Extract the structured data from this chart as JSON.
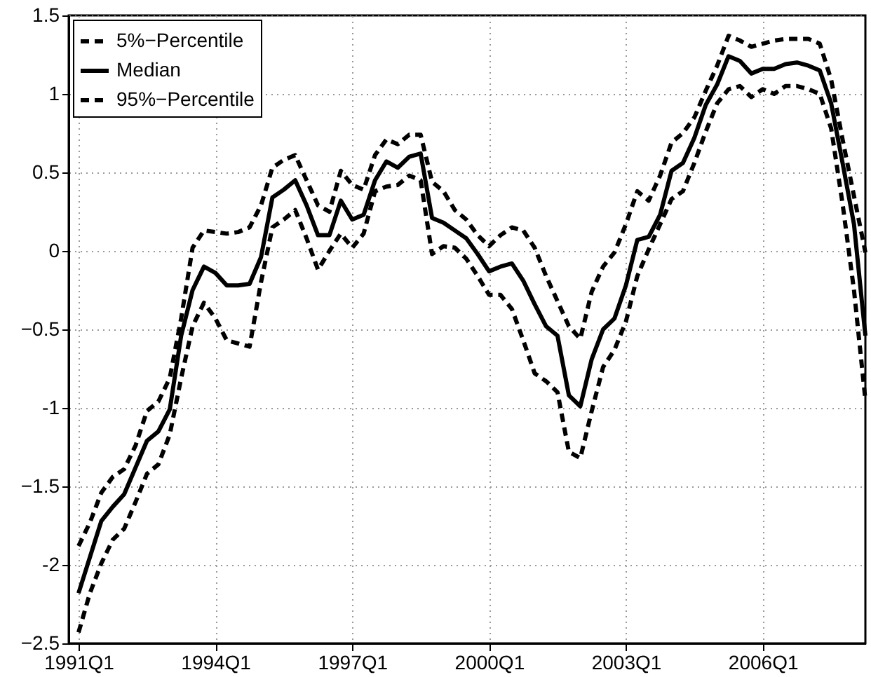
{
  "chart_data": {
    "type": "line",
    "ylim": [
      -2.5,
      1.5
    ],
    "categories": [
      "1991Q1",
      null,
      null,
      null,
      null,
      null,
      null,
      null,
      null,
      null,
      null,
      null,
      "1994Q1",
      null,
      null,
      null,
      null,
      null,
      null,
      null,
      null,
      null,
      null,
      null,
      "1997Q1",
      null,
      null,
      null,
      null,
      null,
      null,
      null,
      null,
      null,
      null,
      null,
      "2000Q1",
      null,
      null,
      null,
      null,
      null,
      null,
      null,
      null,
      null,
      null,
      null,
      "2003Q1",
      null,
      null,
      null,
      null,
      null,
      null,
      null,
      null,
      null,
      null,
      null,
      "2006Q1",
      null,
      null,
      null,
      null,
      null,
      null,
      null,
      null,
      null
    ],
    "yticks": [
      -2.5,
      {
        "value": -2,
        "label": "-2"
      },
      -1.5,
      {
        "value": -1,
        "label": "-1"
      },
      -0.5,
      {
        "value": 0,
        "label": "0"
      },
      0.5,
      {
        "value": 1,
        "label": "1"
      },
      1.5
    ],
    "series": [
      {
        "name": "5%−Percentile",
        "color": "#000000",
        "line_style": "dashed",
        "values": [
          -2.43,
          -2.18,
          -1.99,
          -1.84,
          -1.77,
          -1.6,
          -1.42,
          -1.36,
          -1.17,
          -0.81,
          -0.48,
          -0.33,
          -0.43,
          -0.57,
          -0.59,
          -0.61,
          -0.2,
          0.15,
          0.2,
          0.26,
          0.08,
          -0.12,
          0.0,
          0.11,
          0.02,
          0.11,
          0.38,
          0.41,
          0.42,
          0.48,
          0.45,
          -0.02,
          0.03,
          0.02,
          -0.05,
          -0.16,
          -0.28,
          -0.28,
          -0.37,
          -0.57,
          -0.78,
          -0.83,
          -0.9,
          -1.28,
          -1.32,
          -1.02,
          -0.74,
          -0.63,
          -0.45,
          -0.16,
          0.01,
          0.17,
          0.33,
          0.38,
          0.56,
          0.76,
          0.94,
          1.03,
          1.05,
          0.98,
          1.03,
          1.0,
          1.05,
          1.05,
          1.03,
          1.0,
          0.78,
          0.3,
          -0.25,
          -0.95
        ]
      },
      {
        "name": "Median",
        "color": "#000000",
        "line_style": "solid",
        "values": [
          -2.18,
          -1.95,
          -1.72,
          -1.63,
          -1.55,
          -1.38,
          -1.21,
          -1.15,
          -1.01,
          -0.54,
          -0.25,
          -0.1,
          -0.14,
          -0.22,
          -0.22,
          -0.21,
          -0.04,
          0.34,
          0.39,
          0.45,
          0.29,
          0.1,
          0.1,
          0.32,
          0.2,
          0.23,
          0.45,
          0.57,
          0.53,
          0.6,
          0.62,
          0.21,
          0.18,
          0.13,
          0.08,
          -0.02,
          -0.13,
          -0.1,
          -0.08,
          -0.19,
          -0.34,
          -0.48,
          -0.54,
          -0.92,
          -0.99,
          -0.69,
          -0.5,
          -0.43,
          -0.22,
          0.07,
          0.09,
          0.23,
          0.51,
          0.56,
          0.72,
          0.93,
          1.06,
          1.24,
          1.21,
          1.13,
          1.16,
          1.16,
          1.19,
          1.2,
          1.18,
          1.15,
          0.94,
          0.56,
          0.17,
          -0.54
        ]
      },
      {
        "name": "95%−Percentile",
        "color": "#000000",
        "line_style": "dashed",
        "values": [
          -1.88,
          -1.73,
          -1.54,
          -1.44,
          -1.39,
          -1.24,
          -1.02,
          -0.96,
          -0.81,
          -0.43,
          0.02,
          0.13,
          0.12,
          0.11,
          0.12,
          0.15,
          0.29,
          0.53,
          0.58,
          0.61,
          0.45,
          0.29,
          0.25,
          0.51,
          0.42,
          0.39,
          0.61,
          0.71,
          0.68,
          0.74,
          0.74,
          0.44,
          0.38,
          0.26,
          0.2,
          0.1,
          0.03,
          0.1,
          0.15,
          0.13,
          0.02,
          -0.16,
          -0.32,
          -0.48,
          -0.56,
          -0.26,
          -0.1,
          -0.01,
          0.17,
          0.38,
          0.32,
          0.48,
          0.69,
          0.75,
          0.85,
          1.02,
          1.18,
          1.37,
          1.34,
          1.3,
          1.32,
          1.34,
          1.35,
          1.35,
          1.35,
          1.32,
          1.09,
          0.71,
          0.35,
          -0.01
        ]
      }
    ],
    "grid": true,
    "legend": "top left",
    "marker": "none"
  }
}
